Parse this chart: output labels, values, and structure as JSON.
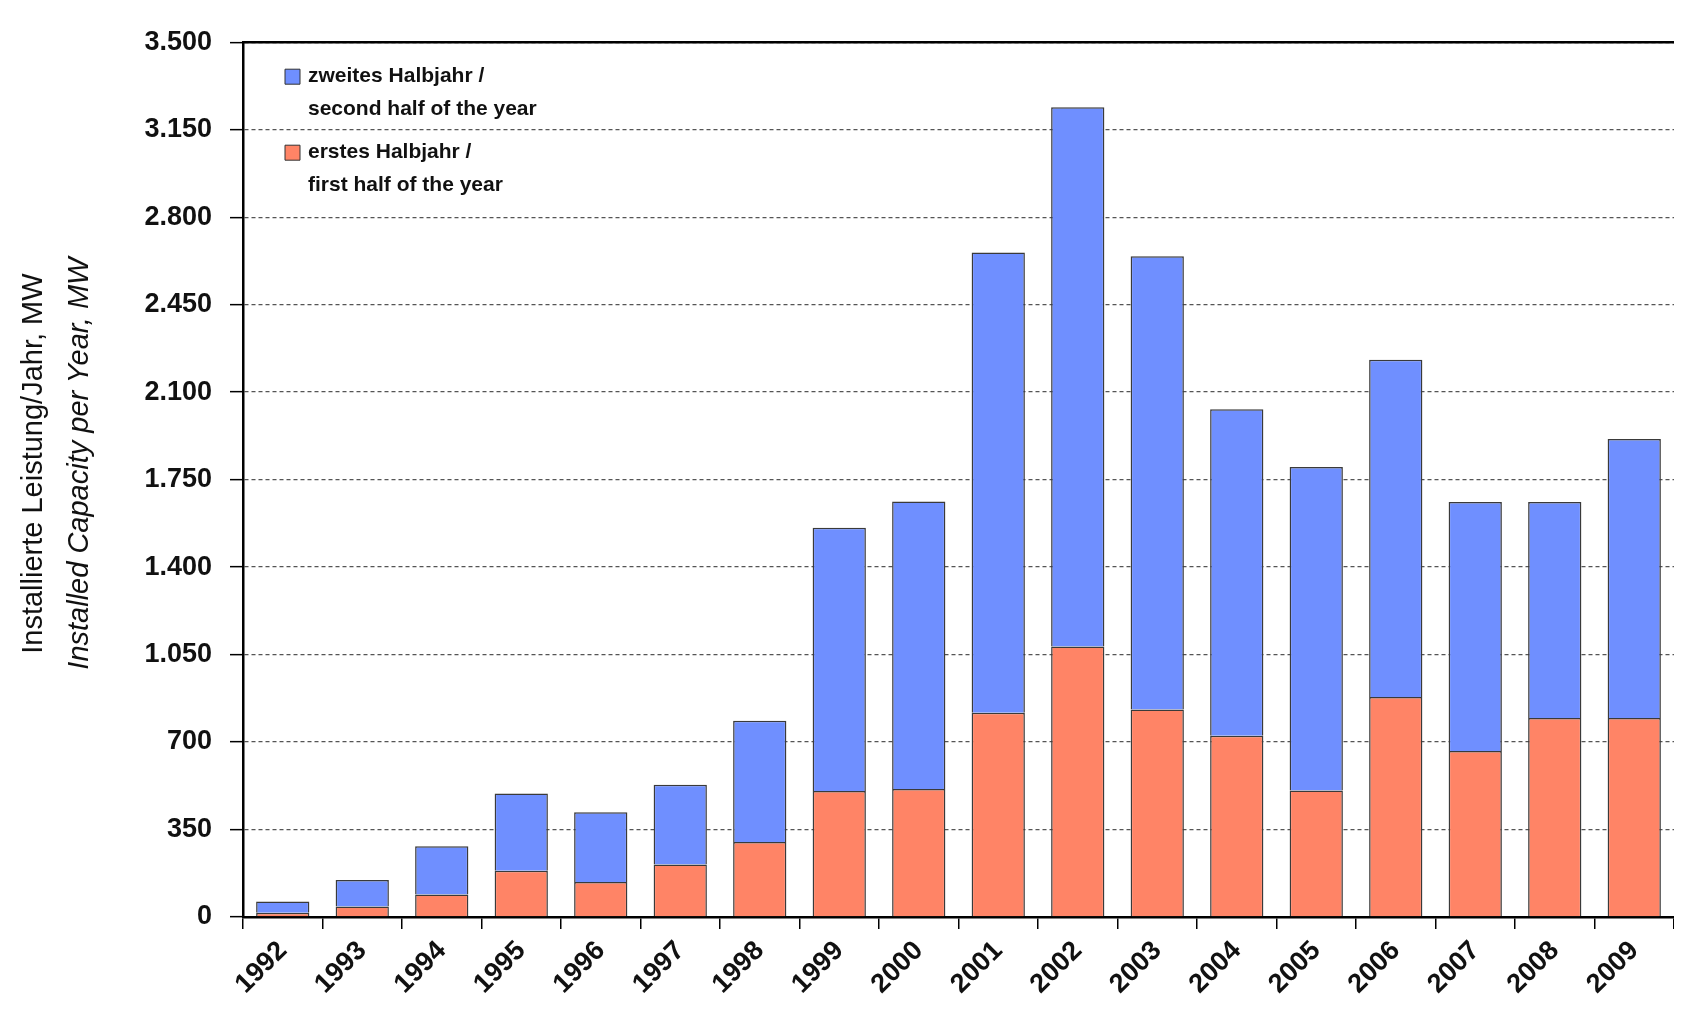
{
  "chart_data": {
    "type": "bar",
    "stacked": true,
    "categories": [
      "1992",
      "1993",
      "1994",
      "1995",
      "1996",
      "1997",
      "1998",
      "1999",
      "2000",
      "2001",
      "2002",
      "2003",
      "2004",
      "2005",
      "2006",
      "2007",
      "2008",
      "2009"
    ],
    "series": [
      {
        "name": "erstes Halbjahr /\nfirst half of the year",
        "color": "#ff8466",
        "values": [
          17,
          42,
          90,
          185,
          140,
          210,
          300,
          504,
          512,
          817,
          1082,
          830,
          725,
          506,
          880,
          664,
          796,
          796
        ]
      },
      {
        "name": "zweites Halbjahr /\nsecond half of the year",
        "color": "#6f8fff",
        "values": [
          45,
          106,
          193,
          309,
          279,
          319,
          485,
          1053,
          1150,
          1842,
          2158,
          1814,
          1306,
          1294,
          1350,
          996,
          864,
          1116
        ]
      }
    ],
    "ylabel": "Installierte Leistung/Jahr, MW\nInstalled Capacity per Year, MW",
    "ylim": [
      0,
      3500
    ],
    "yticks": [
      0,
      350,
      700,
      {
        "value": 1050,
        "label": "1.050"
      },
      {
        "value": 1400,
        "label": "1.400"
      },
      {
        "value": 1750,
        "label": "1.750"
      },
      {
        "value": 2100,
        "label": "2.100"
      },
      {
        "value": 2450,
        "label": "2.450"
      },
      {
        "value": 2800,
        "label": "2.800"
      },
      {
        "value": 3150,
        "label": "3.150"
      },
      {
        "value": 3500,
        "label": "3.500"
      }
    ],
    "grid": "y",
    "legend": "top left"
  }
}
